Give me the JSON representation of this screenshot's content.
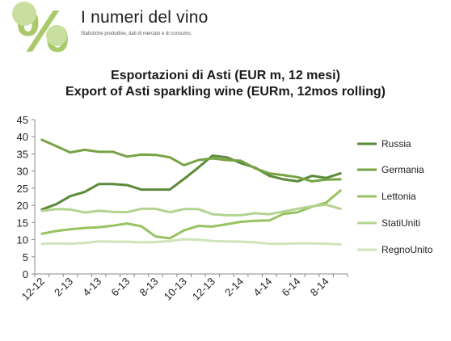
{
  "header": {
    "brand_title": "I numeri del vino",
    "brand_subtitle": "Statistiche produttive, dati di mercato e di consumo,",
    "logo_symbol": "%"
  },
  "colors": {
    "Russia": "#5a8a3a",
    "Germania": "#77a344",
    "Lettonia": "#99c261",
    "StatiUniti": "#b4d391",
    "RegnoUnito": "#cfe4b9",
    "logo_green": "#a9c96a",
    "logo_grape": "#c9dfa0"
  },
  "chart_data": {
    "type": "line",
    "title_line1": "Esportazioni di Asti (EUR m, 12 mesi)",
    "title_line2": "Export of Asti sparkling wine (EURm, 12mos rolling)",
    "xlabel": "",
    "ylabel": "",
    "ylim": [
      0,
      45
    ],
    "yticks": [
      "0",
      "5",
      "10",
      "15",
      "20",
      "25",
      "30",
      "35",
      "40",
      "45"
    ],
    "grid": false,
    "legend_position": "right",
    "x": [
      "12-12",
      "1-13",
      "2-13",
      "3-13",
      "4-13",
      "5-13",
      "6-13",
      "7-13",
      "8-13",
      "9-13",
      "10-13",
      "11-13",
      "12-13",
      "1-14",
      "2-14",
      "3-14",
      "4-14",
      "5-14",
      "6-14",
      "7-14",
      "8-14",
      "9-14"
    ],
    "xtick_labels": [
      "12-12",
      "",
      "2-13",
      "",
      "4-13",
      "",
      "6-13",
      "",
      "8-13",
      "",
      "10-13",
      "",
      "12-13",
      "",
      "2-14",
      "",
      "4-14",
      "",
      "6-14",
      "",
      "8-14",
      ""
    ],
    "series": [
      {
        "name": "Russia",
        "values": [
          18.8,
          20.3,
          22.7,
          23.9,
          26.2,
          26.2,
          25.9,
          24.6,
          24.6,
          24.6,
          27.7,
          31.0,
          34.5,
          34.0,
          32.3,
          31.0,
          28.6,
          27.6,
          27.0,
          28.6,
          28.0,
          29.3
        ]
      },
      {
        "name": "Germania",
        "values": [
          39.1,
          37.3,
          35.4,
          36.2,
          35.6,
          35.6,
          34.2,
          34.8,
          34.7,
          34.0,
          31.7,
          33.2,
          33.7,
          33.2,
          33.0,
          30.8,
          29.3,
          28.8,
          28.2,
          27.0,
          27.5,
          27.6
        ]
      },
      {
        "name": "Lettonia",
        "values": [
          11.7,
          12.5,
          13.0,
          13.4,
          13.6,
          14.1,
          14.7,
          13.9,
          10.9,
          10.4,
          12.7,
          14.0,
          13.8,
          14.5,
          15.2,
          15.5,
          15.6,
          17.5,
          18.0,
          19.6,
          20.8,
          24.3
        ]
      },
      {
        "name": "StatiUniti",
        "values": [
          18.4,
          18.9,
          18.8,
          17.9,
          18.4,
          18.1,
          18.0,
          19.0,
          19.0,
          18.0,
          18.9,
          18.9,
          17.4,
          17.1,
          17.1,
          17.7,
          17.4,
          18.2,
          19.0,
          19.7,
          20.2,
          19.0
        ]
      },
      {
        "name": "RegnoUnito",
        "values": [
          8.8,
          8.9,
          8.8,
          9.0,
          9.5,
          9.4,
          9.4,
          9.2,
          9.3,
          9.6,
          10.1,
          10.0,
          9.6,
          9.5,
          9.4,
          9.2,
          8.8,
          8.8,
          8.9,
          8.9,
          8.8,
          8.6
        ]
      }
    ]
  }
}
